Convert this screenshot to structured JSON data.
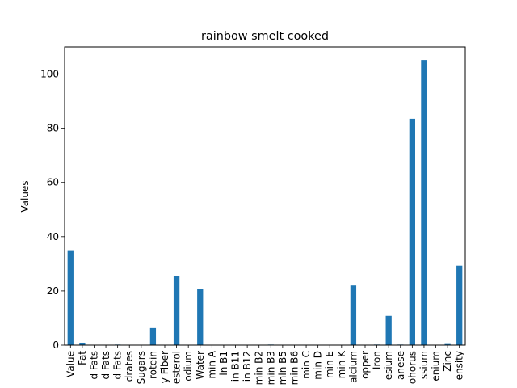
{
  "chart_data": {
    "type": "bar",
    "title": "rainbow smelt cooked",
    "xlabel": "",
    "ylabel": "Values",
    "ylim": [
      0,
      110
    ],
    "yticks": [
      0,
      20,
      40,
      60,
      80,
      100
    ],
    "grid": false,
    "legend": "none",
    "bar_color": "#1f77b4",
    "categories": [
      "Value",
      "Fat",
      "d Fats",
      "d Fats",
      "d Fats",
      "drates",
      "Sugars",
      "rotein",
      "y Fiber",
      "esterol",
      "odium",
      "Water",
      "min A",
      "in B1",
      "in B11",
      "in B12",
      "min B2",
      "min B3",
      "min B5",
      "min B6",
      "min C",
      "min D",
      "min E",
      "min K",
      "alcium",
      "opper",
      "Iron",
      "esium",
      "anese",
      "ohorus",
      "ssium",
      "enium",
      "Zinc",
      "ensity"
    ],
    "values": [
      35.0,
      0.9,
      0.0,
      0.0,
      0.2,
      0.0,
      0.0,
      6.3,
      0.0,
      25.5,
      0.0,
      20.8,
      0.0,
      0.0,
      0.0,
      0.0,
      0.0,
      0.2,
      0.0,
      0.0,
      0.0,
      0.0,
      0.0,
      0.0,
      22.0,
      0.0,
      0.2,
      10.8,
      0.2,
      83.5,
      105.2,
      0.0,
      0.7,
      29.3
    ]
  }
}
